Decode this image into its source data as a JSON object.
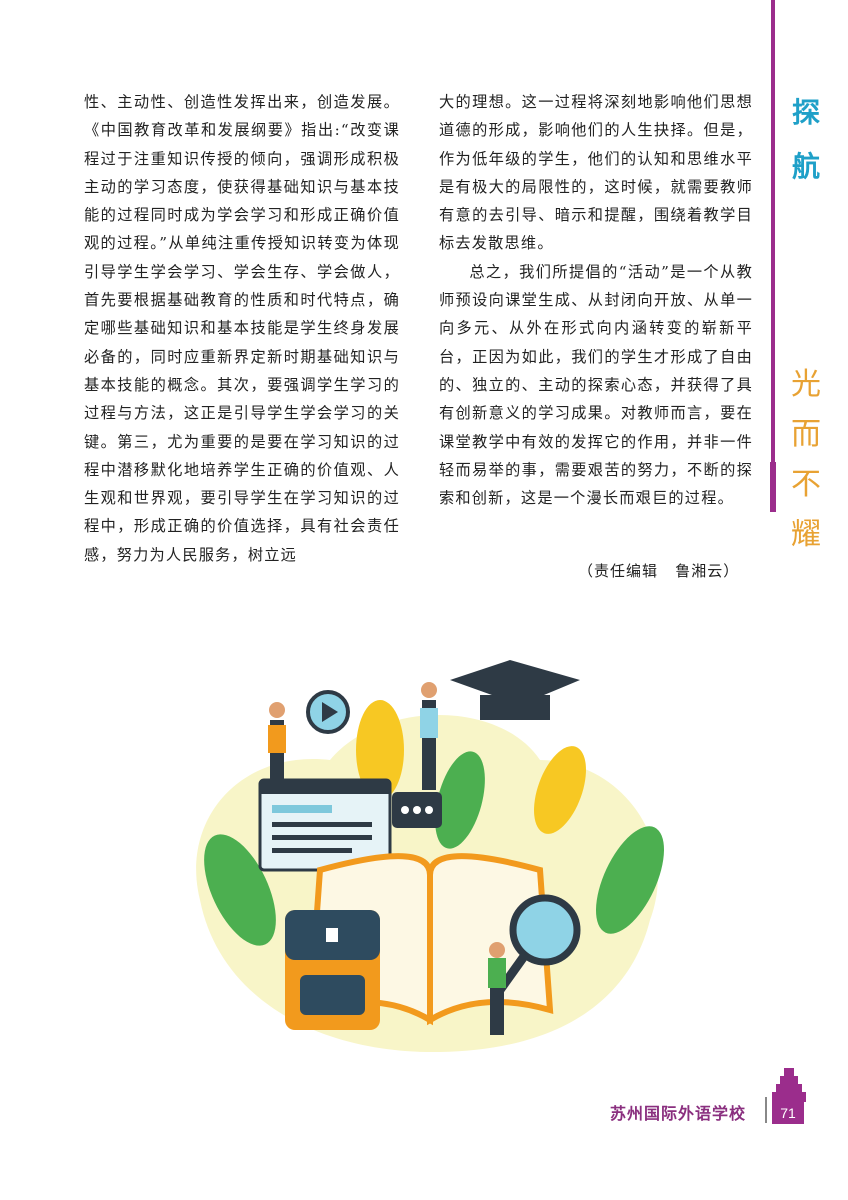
{
  "left_column": [
    "性、主动性、创造性发挥出来，创造发展。《中国教育改革和发展纲要》指出:“改变课程过于注重知识传授的倾向，强调形成积极主动的学习态度，使获得基础知识与基本技能的过程同时成为学会学习和形成正确价值观的过程。”从单纯注重传授知识转变为体现引导学生学会学习、学会生存、学会做人，首先要根据基础教育的性质和时代特点，确定哪些基础知识和基本技能是学生终身发展必备的，同时应重新界定新时期基础知识与基本技能的概念。其次，要强调学生学习的过程与方法，这正是引导学生学会学习的关键。第三，尤为重要的是要在学习知识的过程中潜移默化地培养学生正确的价值观、人生观和世界观，要引导学生在学习知识的过程中，形成正确的价值选择，具有社会责任感，努力为人民服务，树立远"
  ],
  "right_column": [
    "大的理想。这一过程将深刻地影响他们思想道德的形成，影响他们的人生抉择。但是，作为低年级的学生，他们的认知和思维水平是有极大的局限性的，这时候，就需要教师有意的去引导、暗示和提醒，围绕着教学目标去发散思维。",
    "总之，我们所提倡的“活动”是一个从教师预设向课堂生成、从封闭向开放、从单一向多元、从外在形式向内涵转变的崭新平台，正因为如此，我们的学生才形成了自由的、独立的、主动的探索心态，并获得了具有创新意义的学习成果。对教师而言，要在课堂教学中有效的发挥它的作用，并非一件轻而易举的事，需要艰苦的努力，不断的探索和创新，这是一个漫长而艰巨的过程。"
  ],
  "credit": "（责任编辑   鲁湘云）",
  "sidebar": {
    "section_top": "探航",
    "section_bottom": "光而不耀"
  },
  "footer": {
    "school": "苏州国际外语学校",
    "page": "71"
  },
  "colors": {
    "accent_purple": "#9b2d8c",
    "teal": "#1fa0c8",
    "gold": "#e8a233"
  }
}
